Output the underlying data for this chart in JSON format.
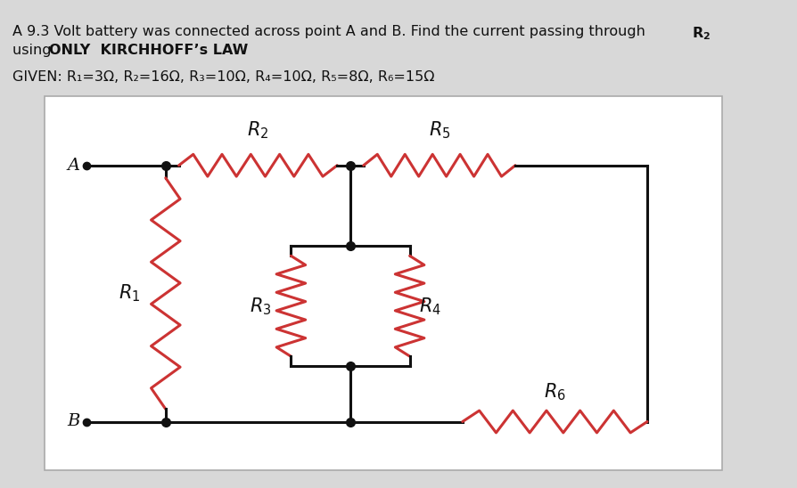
{
  "bg_color": "#d8d8d8",
  "box_bg": "#ffffff",
  "wire_color": "#111111",
  "resistor_color": "#cc3333",
  "dot_color": "#111111",
  "text_color": "#111111",
  "line1": "A 9.3 Volt battery was connected across point A and B. Find the current passing through ",
  "line1_bold": "R₂",
  "line2_normal": "using ",
  "line2_bold": "ONLY  KIRCHHOFF’s LAW",
  "given": "GIVEN: R₁=3Ω, R₂=16Ω, R₃=10Ω, R₄=10Ω, R₅=8Ω, R₆=15Ω"
}
